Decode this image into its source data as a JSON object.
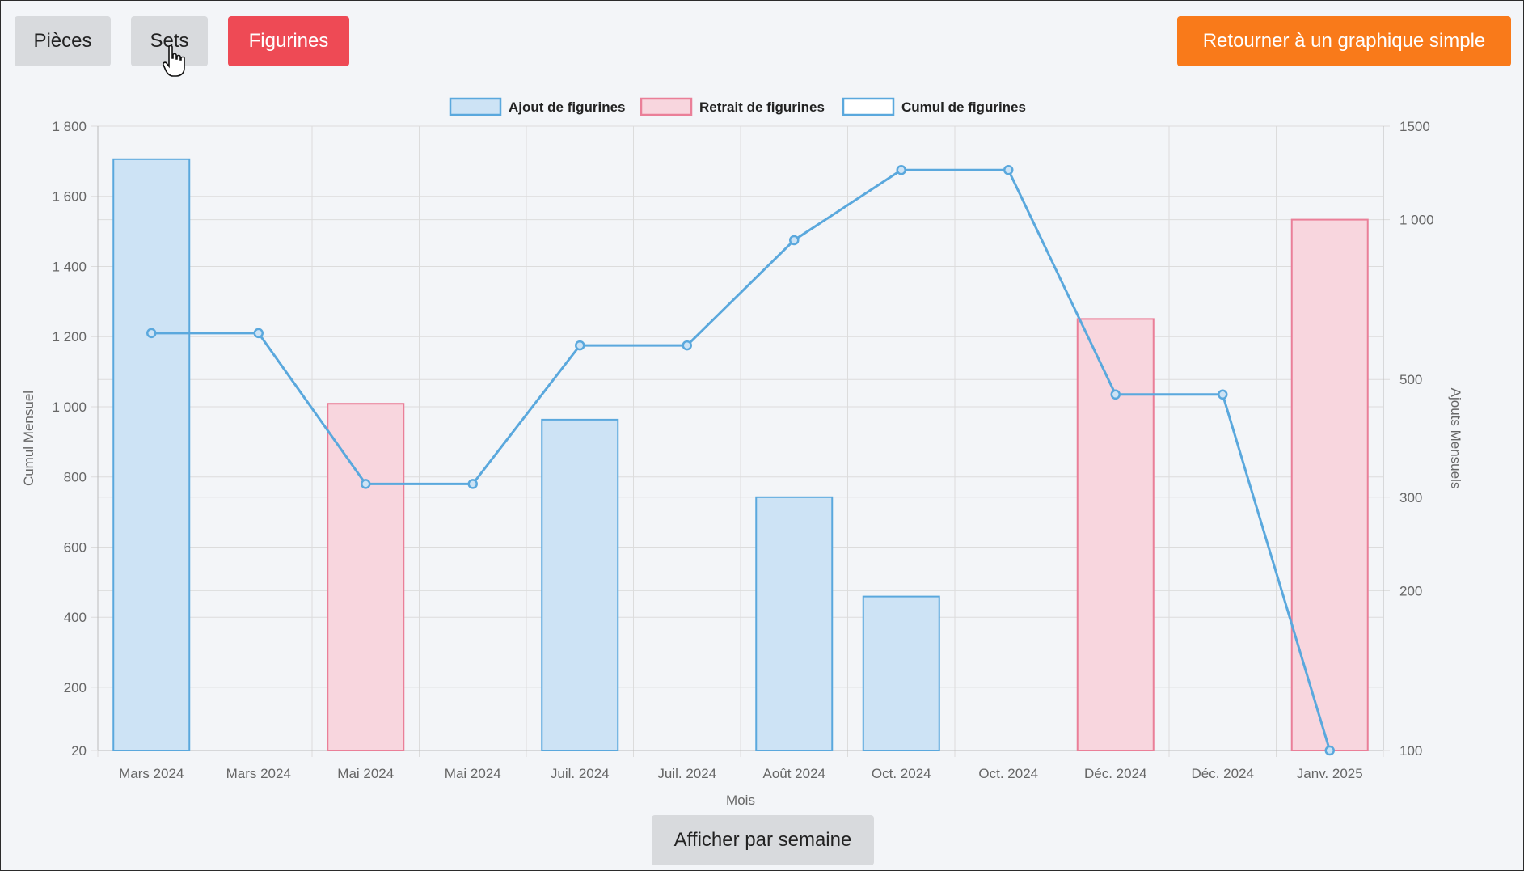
{
  "toolbar": {
    "pieces_label": "Pièces",
    "sets_label": "Sets",
    "figurines_label": "Figurines",
    "retour_label": "Retourner à un graphique simple"
  },
  "footer": {
    "semaine_label": "Afficher par semaine"
  },
  "colors": {
    "ajout_fill": "#cde3f5",
    "ajout_stroke": "#5aa8dd",
    "retrait_fill": "#f8d6de",
    "retrait_stroke": "#ea7f98",
    "cumul_line": "#5aa8dd",
    "active_button": "#ee4a55",
    "orange_button": "#f97a1a"
  },
  "chart_data": {
    "type": "bar",
    "categories": [
      "Mars 2024",
      "Mars 2024",
      "Mai 2024",
      "Mai 2024",
      "Juil. 2024",
      "Juil. 2024",
      "Août 2024",
      "Oct. 2024",
      "Oct. 2024",
      "Déc. 2024",
      "Déc. 2024",
      "Janv. 2025"
    ],
    "xlabel": "Mois",
    "ylabel_left": "Cumul Mensuel",
    "ylabel_right": "Ajouts Mensuels",
    "ylim_left": [
      20,
      1800
    ],
    "yticks_left": [
      20,
      200,
      400,
      600,
      800,
      1000,
      1200,
      1400,
      1600,
      1800
    ],
    "ytick_labels_left": [
      "20",
      "200",
      "400",
      "600",
      "800",
      "1 000",
      "1 200",
      "1 400",
      "1 600",
      "1 800"
    ],
    "ylim_right": [
      100,
      1500
    ],
    "y_scale_right": "log",
    "yticks_right": [
      100,
      200,
      300,
      500,
      1000,
      1500
    ],
    "ytick_labels_right": [
      "100",
      "200",
      "300",
      "500",
      "1 000",
      "1500"
    ],
    "grid": true,
    "legend_position": "top",
    "series": [
      {
        "name": "Ajout de figurines",
        "kind": "bar",
        "axis": "right",
        "values": [
          1300,
          null,
          null,
          null,
          420,
          null,
          300,
          195,
          null,
          null,
          null,
          null
        ]
      },
      {
        "name": "Retrait de figurines",
        "kind": "bar",
        "axis": "right",
        "values": [
          null,
          null,
          450,
          null,
          null,
          null,
          null,
          null,
          null,
          650,
          null,
          1000
        ]
      },
      {
        "name": "Cumul de figurines",
        "kind": "line",
        "axis": "left",
        "values": [
          1210,
          1210,
          780,
          780,
          1175,
          1175,
          1475,
          1675,
          1675,
          1035,
          1035,
          20
        ]
      }
    ]
  }
}
